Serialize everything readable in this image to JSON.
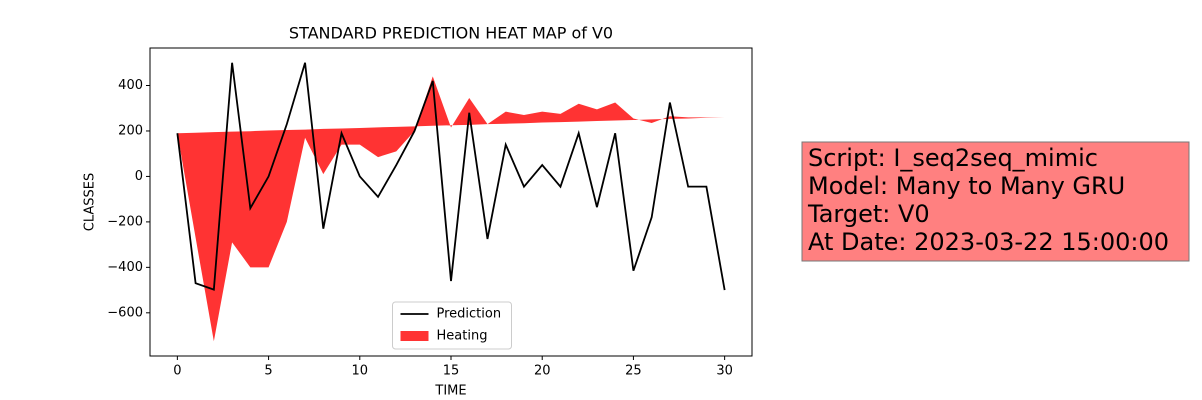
{
  "chart_data": {
    "type": "line",
    "title": "STANDARD PREDICTION HEAT MAP of V0",
    "x_label": "TIME",
    "y_label": "CLASSES",
    "x": [
      0,
      1,
      2,
      3,
      4,
      5,
      6,
      7,
      8,
      9,
      10,
      11,
      12,
      13,
      14,
      15,
      16,
      17,
      18,
      19,
      20,
      21,
      22,
      23,
      24,
      25,
      26,
      27,
      28,
      29,
      30
    ],
    "series": [
      {
        "name": "Prediction",
        "type": "line",
        "color": "#000000",
        "values": [
          190,
          -470,
          -498,
          500,
          -140,
          0,
          230,
          500,
          -230,
          190,
          0,
          -90,
          50,
          200,
          420,
          -460,
          280,
          -275,
          140,
          -45,
          50,
          -45,
          190,
          -135,
          190,
          -415,
          -180,
          325,
          -45,
          -45,
          -500
        ]
      },
      {
        "name": "Heating",
        "type": "fill_between",
        "color": "#ff0000",
        "alpha": 0.8,
        "values": [
          190,
          -270,
          -725,
          -290,
          -400,
          -400,
          -200,
          170,
          10,
          140,
          140,
          85,
          110,
          200,
          440,
          215,
          345,
          230,
          285,
          270,
          285,
          275,
          320,
          295,
          325,
          255,
          235,
          265,
          260,
          260,
          260
        ],
        "base": [
          190,
          192,
          195,
          197,
          199,
          202,
          204,
          206,
          209,
          211,
          213,
          216,
          218,
          220,
          223,
          225,
          227,
          230,
          232,
          234,
          237,
          239,
          241,
          244,
          246,
          248,
          251,
          253,
          255,
          258,
          260
        ]
      }
    ],
    "xlim": [
      -1.5,
      31.5
    ],
    "xticks": [
      0,
      5,
      10,
      15,
      20,
      25,
      30
    ],
    "ylim": [
      -790,
      565
    ],
    "yticks": [
      {
        "value": -600,
        "label": "−600"
      },
      {
        "value": -400,
        "label": "−400"
      },
      {
        "value": -200,
        "label": "−200"
      },
      0,
      200,
      400
    ],
    "legend": "lower center",
    "annotation": {
      "lines": [
        "Script: I_seq2seq_mimic",
        "Model: Many to Many GRU",
        "Target: V0",
        "At Date: 2023-03-22 15:00:00"
      ],
      "color": "#ff8080"
    }
  }
}
